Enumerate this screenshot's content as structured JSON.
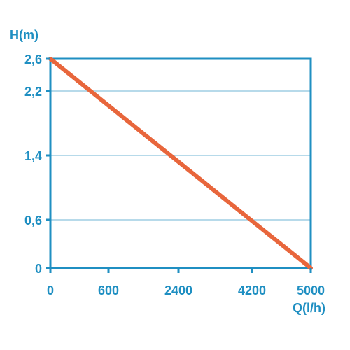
{
  "chart_data": {
    "type": "line",
    "ylabel": "H(m)",
    "xlabel": "Q(l/h)",
    "x_ticks": [
      "0",
      "600",
      "2400",
      "4200",
      "5000"
    ],
    "y_ticks": [
      "2,6",
      "2,2",
      "1,4",
      "0,6",
      "0"
    ],
    "y_tick_values": [
      2.6,
      2.2,
      1.4,
      0.6,
      0
    ],
    "ylim": [
      0,
      2.6
    ],
    "grid": true,
    "series": [
      {
        "x": [
          "0",
          "5000"
        ],
        "y": [
          2.6,
          0
        ]
      }
    ]
  },
  "colors": {
    "frame": "#1f8fc2",
    "grid": "#8cc3dd",
    "text": "#1f8fc2",
    "line": "#e8663c"
  }
}
